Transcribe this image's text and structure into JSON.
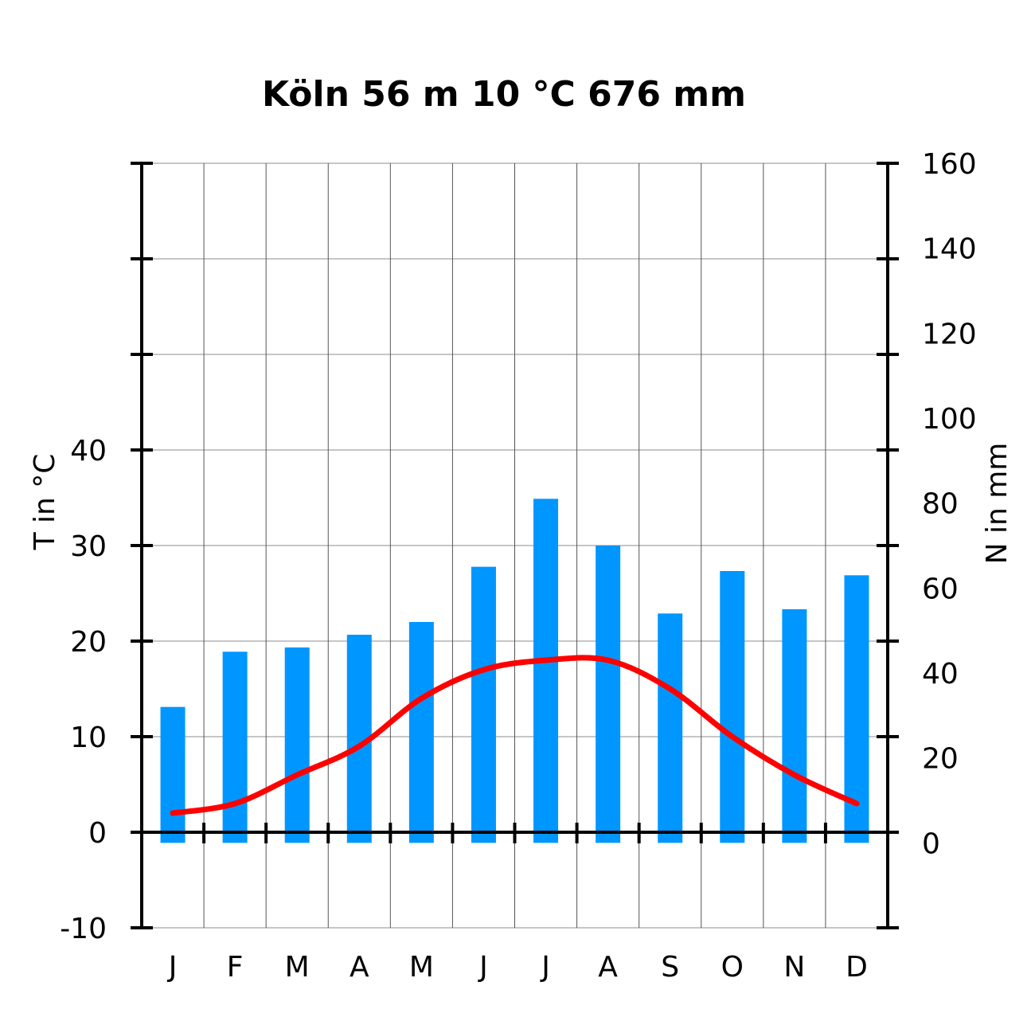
{
  "chart_data": {
    "type": "bar+line",
    "title": "Köln  56 m  10 °C  676 mm",
    "categories": [
      "J",
      "F",
      "M",
      "A",
      "M",
      "J",
      "J",
      "A",
      "S",
      "O",
      "N",
      "D"
    ],
    "left_axis": {
      "label": "T in °C",
      "range": [
        -10,
        70
      ],
      "tick_labels": [
        "-10",
        "0",
        "10",
        "20",
        "30",
        "40"
      ]
    },
    "right_axis": {
      "label": "N in mm",
      "range": [
        -20,
        160
      ],
      "tick_labels": [
        "0",
        "20",
        "40",
        "60",
        "80",
        "100",
        "120",
        "140",
        "160"
      ]
    },
    "series": [
      {
        "type": "bar",
        "axis": "right",
        "color": "#0096ff",
        "values": [
          32,
          45,
          46,
          49,
          52,
          65,
          81,
          70,
          54,
          64,
          55,
          63
        ]
      },
      {
        "type": "line",
        "axis": "left",
        "color": "#ff0000",
        "values": [
          2.0,
          3.0,
          6.0,
          9.0,
          14.0,
          17.0,
          18.0,
          18.0,
          15.0,
          10.0,
          6.0,
          3.0
        ]
      }
    ],
    "grid": true
  }
}
